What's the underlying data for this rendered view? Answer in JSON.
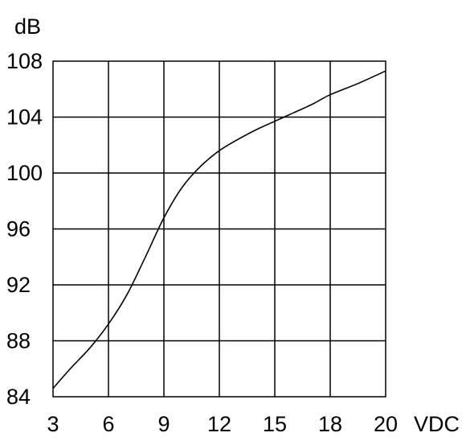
{
  "chart_data": {
    "type": "line",
    "title": "",
    "xlabel": "VDC",
    "ylabel": "dB",
    "x_ticks": [
      "3",
      "6",
      "9",
      "12",
      "15",
      "18",
      "20"
    ],
    "y_ticks": [
      "108",
      "104",
      "100",
      "96",
      "92",
      "88",
      "84"
    ],
    "ylim": [
      84,
      108
    ],
    "grid": true,
    "series": [
      {
        "x": [
          3,
          4,
          5,
          6,
          7,
          8,
          9,
          10,
          11,
          12,
          13,
          14,
          15,
          16,
          17,
          18,
          19,
          20
        ],
        "y": [
          84.6,
          86.1,
          87.5,
          89.2,
          91.3,
          94.0,
          96.8,
          99.0,
          100.5,
          101.6,
          102.4,
          103.1,
          103.7,
          104.3,
          104.9,
          105.6,
          106.4,
          107.3
        ]
      }
    ]
  }
}
